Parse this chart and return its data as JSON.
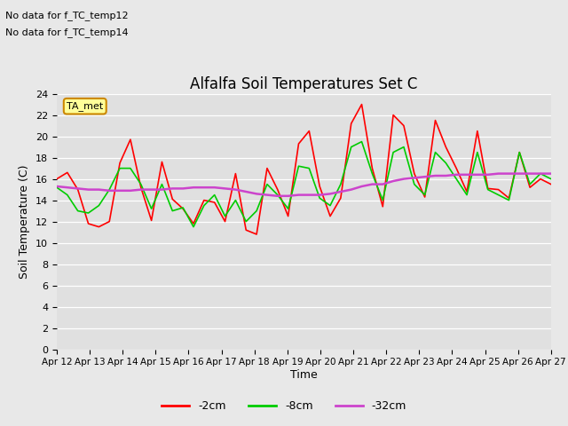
{
  "title": "Alfalfa Soil Temperatures Set C",
  "xlabel": "Time",
  "ylabel": "Soil Temperature (C)",
  "ylim": [
    0,
    24
  ],
  "yticks": [
    0,
    2,
    4,
    6,
    8,
    10,
    12,
    14,
    16,
    18,
    20,
    22,
    24
  ],
  "x_labels": [
    "Apr 12",
    "Apr 13",
    "Apr 14",
    "Apr 15",
    "Apr 16",
    "Apr 17",
    "Apr 18",
    "Apr 19",
    "Apr 20",
    "Apr 21",
    "Apr 22",
    "Apr 23",
    "Apr 24",
    "Apr 25",
    "Apr 26",
    "Apr 27"
  ],
  "no_data_texts": [
    "No data for f_TC_temp12",
    "No data for f_TC_temp14"
  ],
  "ta_met_label": "TA_met",
  "legend_entries": [
    "-2cm",
    "-8cm",
    "-32cm"
  ],
  "legend_colors": [
    "#ff0000",
    "#00cc00",
    "#cc44cc"
  ],
  "fig_bg_color": "#e8e8e8",
  "plot_bg_color": "#e0e0e0",
  "red_line": [
    16.0,
    16.6,
    15.0,
    11.8,
    11.5,
    12.0,
    17.5,
    19.7,
    15.2,
    12.1,
    17.6,
    14.1,
    13.2,
    11.8,
    14.0,
    13.8,
    12.0,
    16.5,
    11.2,
    10.8,
    17.0,
    15.0,
    12.5,
    19.3,
    20.5,
    15.3,
    12.5,
    14.2,
    21.2,
    23.0,
    17.0,
    13.4,
    22.0,
    21.0,
    16.5,
    14.3,
    21.5,
    19.0,
    17.0,
    14.8,
    20.5,
    15.1,
    15.0,
    14.2,
    18.5,
    15.2,
    16.0,
    15.5
  ],
  "green_line": [
    15.2,
    14.5,
    13.0,
    12.8,
    13.5,
    15.0,
    17.0,
    17.0,
    15.5,
    13.2,
    15.5,
    13.0,
    13.3,
    11.5,
    13.5,
    14.5,
    12.5,
    14.0,
    12.0,
    13.0,
    15.5,
    14.5,
    13.2,
    17.2,
    17.0,
    14.2,
    13.5,
    15.5,
    19.0,
    19.5,
    16.5,
    14.0,
    18.5,
    19.0,
    15.5,
    14.5,
    18.5,
    17.5,
    16.0,
    14.5,
    18.5,
    15.0,
    14.5,
    14.0,
    18.5,
    15.5,
    16.5,
    16.0
  ],
  "purple_line": [
    15.3,
    15.2,
    15.1,
    15.0,
    15.0,
    14.9,
    14.9,
    14.9,
    15.0,
    15.0,
    15.0,
    15.1,
    15.1,
    15.2,
    15.2,
    15.2,
    15.1,
    15.0,
    14.8,
    14.6,
    14.5,
    14.4,
    14.4,
    14.5,
    14.5,
    14.5,
    14.6,
    14.8,
    15.0,
    15.3,
    15.5,
    15.5,
    15.8,
    16.0,
    16.1,
    16.2,
    16.3,
    16.3,
    16.4,
    16.4,
    16.4,
    16.4,
    16.5,
    16.5,
    16.5,
    16.5,
    16.5,
    16.5
  ]
}
